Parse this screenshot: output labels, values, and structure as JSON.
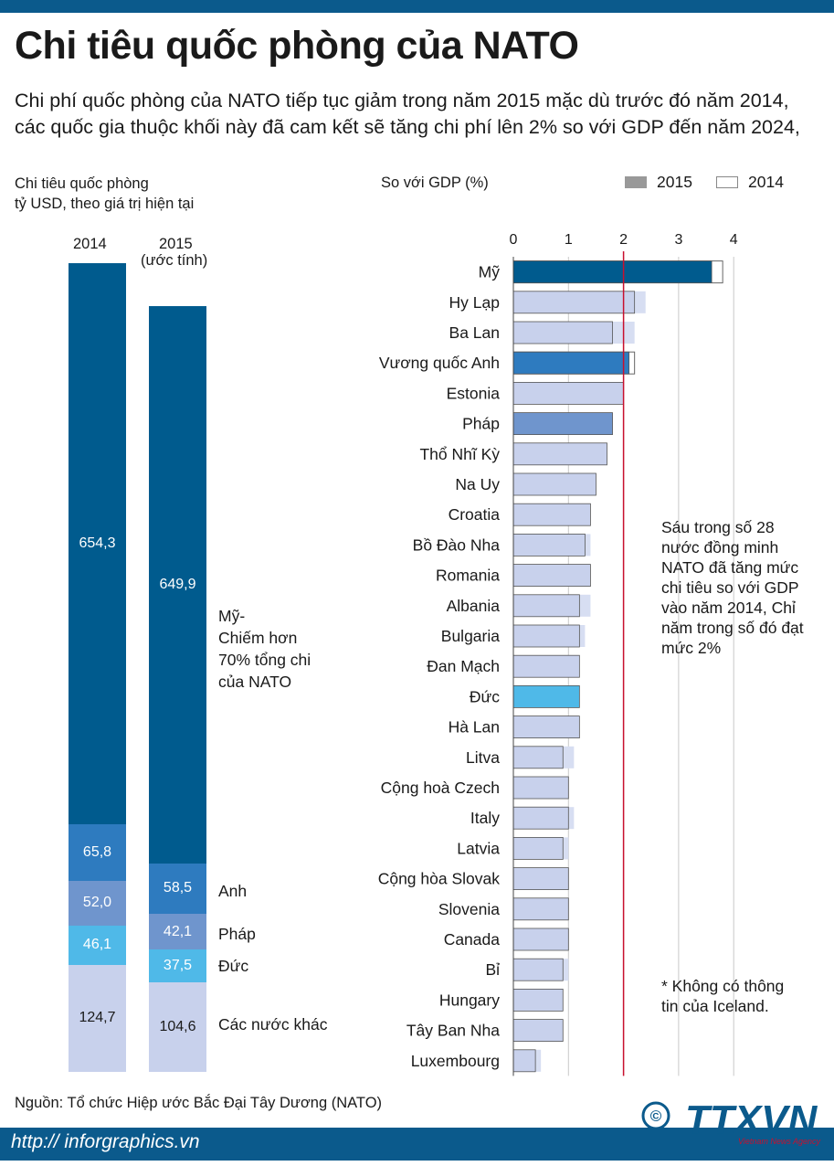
{
  "header": {
    "title": "Chi tiêu quốc phòng của NATO",
    "subtitle": "Chi phí quốc phòng của NATO tiếp tục giảm trong năm 2015 mặc dù trước đó năm 2014, các quốc gia thuộc khối này đã cam kết sẽ tăng chi phí lên 2% so với GDP đến năm 2024,"
  },
  "colors": {
    "accent_band": "#0b5a8c",
    "usa": "#005b8e",
    "uk": "#2e7bbf",
    "france": "#6f95cd",
    "germany": "#4fb9e8",
    "others": "#c8d1ec",
    "target_line": "#c8102e"
  },
  "spending": {
    "title_line1": "Chi tiêu quốc phòng",
    "title_line2": "tỷ USD, theo giá trị hiện tại",
    "col1_label": "2014",
    "col2_label": "2015",
    "col2_sublabel": "(ước tính)",
    "usa_note_1": "Mỹ-",
    "usa_note_2": "Chiếm hơn",
    "usa_note_3": "70% tổng chi",
    "usa_note_4": "của NATO",
    "label_uk": "Anh",
    "label_france": "Pháp",
    "label_germany": "Đức",
    "label_others": "Các nước khác"
  },
  "chart_data": [
    {
      "type": "bar",
      "title": "Chi tiêu quốc phòng",
      "ylabel": "tỷ USD, theo giá trị hiện tại",
      "categories": [
        "2014",
        "2015"
      ],
      "series": [
        {
          "name": "Mỹ",
          "values": [
            654.3,
            649.9
          ],
          "labels": [
            "654,3",
            "649,9"
          ]
        },
        {
          "name": "Anh",
          "values": [
            65.8,
            58.5
          ],
          "labels": [
            "65,8",
            "58,5"
          ]
        },
        {
          "name": "Pháp",
          "values": [
            52.0,
            42.1
          ],
          "labels": [
            "52,0",
            "42,1"
          ]
        },
        {
          "name": "Đức",
          "values": [
            46.1,
            37.5
          ],
          "labels": [
            "46,1",
            "37,5"
          ]
        },
        {
          "name": "Các nước khác",
          "values": [
            124.7,
            104.6
          ],
          "labels": [
            "124,7",
            "104,6"
          ]
        }
      ]
    },
    {
      "type": "bar",
      "orientation": "horizontal",
      "xlabel": "So với GDP (%)",
      "xlim": [
        0,
        4
      ],
      "xticks": [
        "0",
        "1",
        "2",
        "3",
        "4"
      ],
      "reference_line": 2,
      "legend": [
        "2015",
        "2014"
      ],
      "categories": [
        "Mỹ",
        "Hy Lạp",
        "Ba Lan",
        "Vương quốc Anh",
        "Estonia",
        "Pháp",
        "Thổ Nhĩ Kỳ",
        "Na Uy",
        "Croatia",
        "Bồ Đào Nha",
        "Romania",
        "Albania",
        "Bulgaria",
        "Đan Mạch",
        "Đức",
        "Hà Lan",
        "Litva",
        "Cộng hoà Czech",
        "Italy",
        "Latvia",
        "Cộng hòa Slovak",
        "Slovenia",
        "Canada",
        "Bỉ",
        "Hungary",
        "Tây Ban Nha",
        "Luxembourg"
      ],
      "series": [
        {
          "name": "2015",
          "values": [
            3.6,
            2.2,
            1.8,
            2.1,
            2.0,
            1.8,
            1.7,
            1.5,
            1.4,
            1.3,
            1.4,
            1.2,
            1.2,
            1.2,
            1.2,
            1.2,
            0.9,
            1.0,
            1.0,
            0.9,
            1.0,
            1.0,
            1.0,
            0.9,
            0.9,
            0.9,
            0.4
          ]
        },
        {
          "name": "2014",
          "values": [
            3.8,
            2.4,
            2.2,
            2.2,
            2.0,
            1.8,
            1.7,
            1.5,
            1.4,
            1.4,
            1.4,
            1.4,
            1.3,
            1.2,
            1.2,
            1.2,
            1.1,
            1.0,
            1.1,
            1.0,
            1.0,
            1.0,
            1.0,
            1.0,
            0.9,
            0.9,
            0.5
          ]
        }
      ]
    }
  ],
  "note_right": "Sáu trong số 28 nước đồng minh NATO đã tăng mức chi tiêu so với GDP vào năm 2014, Chỉ năm trong số đó đạt mức 2%",
  "note_iceland": "* Không có thông tin của Iceland.",
  "source": "Nguồn: Tổ chức Hiệp ước Bắc Đại Tây Dương (NATO)",
  "footer": {
    "url": "http:// inforgraphics.vn",
    "logo": "TTXVN",
    "logo_sub": "Vietnam News Agency",
    "copyright": "©"
  }
}
